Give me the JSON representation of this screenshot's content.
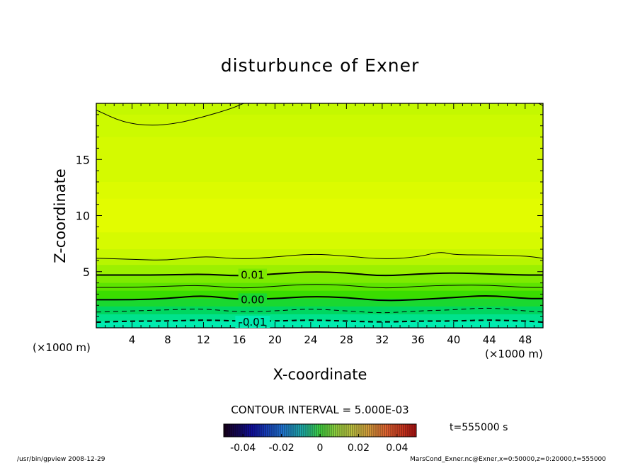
{
  "chart_data": {
    "type": "heatmap",
    "title": "disturbunce of Exner",
    "xlabel": "X-coordinate",
    "ylabel": "Z-coordinate",
    "x_unit": "(×1000 m)",
    "y_unit": "(×1000 m)",
    "xlim": [
      0,
      50
    ],
    "ylim": [
      0,
      20
    ],
    "x_ticks": [
      4,
      8,
      12,
      16,
      20,
      24,
      28,
      32,
      36,
      40,
      44,
      48
    ],
    "y_ticks": [
      5,
      10,
      15
    ],
    "contour_labels": [
      {
        "text": "0.01",
        "x": 17.5,
        "y": 4.7
      },
      {
        "text": "0.00",
        "x": 17.5,
        "y": 2.5
      },
      {
        "text": "-0.01",
        "x": 17.5,
        "y": 0.5
      }
    ],
    "contours": [
      {
        "level": 0.015,
        "style": "solid",
        "weight": "thin",
        "points": [
          [
            0,
            19.4
          ],
          [
            3,
            18.3
          ],
          [
            6,
            18.0
          ],
          [
            9,
            18.2
          ],
          [
            12,
            18.8
          ],
          [
            15,
            19.5
          ],
          [
            16.5,
            20
          ]
        ]
      },
      {
        "level": 0.015,
        "style": "solid",
        "weight": "thin",
        "points": [
          [
            49.5,
            20
          ],
          [
            50,
            19.8
          ]
        ]
      },
      {
        "level": 0.015,
        "style": "solid",
        "weight": "thin",
        "points": [
          [
            0,
            6.2
          ],
          [
            4,
            6.1
          ],
          [
            8,
            6.0
          ],
          [
            12,
            6.4
          ],
          [
            16,
            6.1
          ],
          [
            20,
            6.3
          ],
          [
            24,
            6.6
          ],
          [
            28,
            6.4
          ],
          [
            32,
            6.1
          ],
          [
            36,
            6.3
          ],
          [
            38.5,
            6.8
          ],
          [
            40,
            6.5
          ],
          [
            44,
            6.5
          ],
          [
            48,
            6.4
          ],
          [
            50,
            6.2
          ]
        ]
      },
      {
        "level": 0.01,
        "style": "solid",
        "weight": "bold",
        "points": [
          [
            0,
            4.7
          ],
          [
            4,
            4.7
          ],
          [
            8,
            4.7
          ],
          [
            12,
            4.8
          ],
          [
            16,
            4.6
          ],
          [
            20,
            4.8
          ],
          [
            24,
            5.0
          ],
          [
            28,
            4.9
          ],
          [
            32,
            4.6
          ],
          [
            36,
            4.8
          ],
          [
            40,
            4.9
          ],
          [
            44,
            4.8
          ],
          [
            48,
            4.7
          ],
          [
            50,
            4.7
          ]
        ]
      },
      {
        "level": 0.005,
        "style": "solid",
        "weight": "thin",
        "points": [
          [
            0,
            3.6
          ],
          [
            4,
            3.6
          ],
          [
            8,
            3.7
          ],
          [
            12,
            3.8
          ],
          [
            16,
            3.5
          ],
          [
            20,
            3.7
          ],
          [
            24,
            3.9
          ],
          [
            28,
            3.8
          ],
          [
            32,
            3.5
          ],
          [
            36,
            3.7
          ],
          [
            40,
            3.8
          ],
          [
            44,
            3.8
          ],
          [
            48,
            3.6
          ],
          [
            50,
            3.6
          ]
        ]
      },
      {
        "level": 0.0,
        "style": "solid",
        "weight": "bold",
        "points": [
          [
            0,
            2.5
          ],
          [
            4,
            2.5
          ],
          [
            8,
            2.6
          ],
          [
            12,
            2.9
          ],
          [
            16,
            2.5
          ],
          [
            20,
            2.6
          ],
          [
            24,
            2.8
          ],
          [
            28,
            2.7
          ],
          [
            32,
            2.4
          ],
          [
            36,
            2.5
          ],
          [
            40,
            2.7
          ],
          [
            44,
            2.9
          ],
          [
            48,
            2.6
          ],
          [
            50,
            2.6
          ]
        ]
      },
      {
        "level": -0.005,
        "style": "dashed",
        "weight": "thin",
        "points": [
          [
            0,
            1.4
          ],
          [
            4,
            1.5
          ],
          [
            8,
            1.6
          ],
          [
            12,
            1.7
          ],
          [
            16,
            1.4
          ],
          [
            20,
            1.5
          ],
          [
            24,
            1.7
          ],
          [
            28,
            1.5
          ],
          [
            32,
            1.3
          ],
          [
            36,
            1.5
          ],
          [
            40,
            1.6
          ],
          [
            44,
            1.8
          ],
          [
            48,
            1.5
          ],
          [
            50,
            1.4
          ]
        ]
      },
      {
        "level": -0.01,
        "style": "dashed",
        "weight": "bold",
        "points": [
          [
            0,
            0.5
          ],
          [
            4,
            0.6
          ],
          [
            8,
            0.6
          ],
          [
            12,
            0.7
          ],
          [
            16,
            0.6
          ],
          [
            20,
            0.6
          ],
          [
            24,
            0.7
          ],
          [
            28,
            0.6
          ],
          [
            32,
            0.5
          ],
          [
            36,
            0.6
          ],
          [
            40,
            0.6
          ],
          [
            44,
            0.7
          ],
          [
            48,
            0.6
          ],
          [
            50,
            0.5
          ]
        ]
      }
    ],
    "fill_bands": [
      {
        "z": [
          19,
          20
        ],
        "color": "#c4f800"
      },
      {
        "z": [
          17,
          19
        ],
        "color": "#ccfa00"
      },
      {
        "z": [
          13,
          17
        ],
        "color": "#d4fa00"
      },
      {
        "z": [
          11.5,
          13
        ],
        "color": "#dcfb00"
      },
      {
        "z": [
          8.5,
          11.5
        ],
        "color": "#e2fc00"
      },
      {
        "z": [
          7,
          8.5
        ],
        "color": "#d6fa00"
      },
      {
        "z": [
          6.2,
          7
        ],
        "color": "#c8f800"
      },
      {
        "z": [
          5.6,
          6.2
        ],
        "color": "#b8f500"
      },
      {
        "z": [
          4.8,
          5.6
        ],
        "color": "#9cf000"
      },
      {
        "z": [
          4.0,
          4.8
        ],
        "color": "#7eea00"
      },
      {
        "z": [
          3.3,
          4.0
        ],
        "color": "#5ee400"
      },
      {
        "z": [
          2.6,
          3.3
        ],
        "color": "#3add00"
      },
      {
        "z": [
          1.9,
          2.6
        ],
        "color": "#1ad830"
      },
      {
        "z": [
          1.2,
          1.9
        ],
        "color": "#00d660"
      },
      {
        "z": [
          0.6,
          1.2
        ],
        "color": "#00e28c"
      },
      {
        "z": [
          0,
          0.6
        ],
        "color": "#00ecb0"
      }
    ],
    "colorbar": {
      "range": [
        -0.05,
        0.05
      ],
      "tick_labels": [
        "-0.04",
        "-0.02",
        "0",
        "0.02",
        "0.04"
      ],
      "tick_values": [
        -0.04,
        -0.02,
        0,
        0.02,
        0.04
      ]
    },
    "contour_interval_text": "CONTOUR INTERVAL = 5.000E-03",
    "time_text": "t=555000 s"
  },
  "footer": {
    "left": "/usr/bin/gpview   2008-12-29",
    "right": "MarsCond_Exner.nc@Exner,x=0:50000,z=0:20000,t=555000"
  }
}
